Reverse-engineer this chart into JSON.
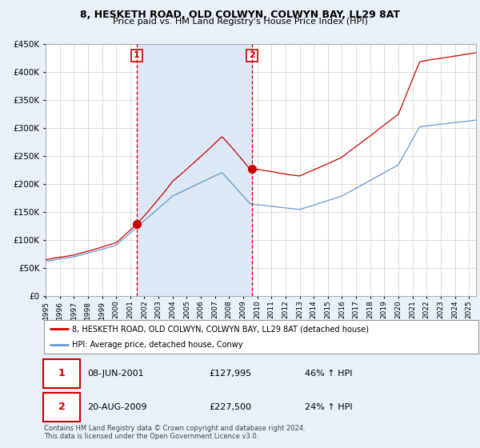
{
  "title": "8, HESKETH ROAD, OLD COLWYN, COLWYN BAY, LL29 8AT",
  "subtitle": "Price paid vs. HM Land Registry's House Price Index (HPI)",
  "hpi_label": "HPI: Average price, detached house, Conwy",
  "property_label": "8, HESKETH ROAD, OLD COLWYN, COLWYN BAY, LL29 8AT (detached house)",
  "sale1_date": "08-JUN-2001",
  "sale1_price": 127995,
  "sale1_hpi": "46% ↑ HPI",
  "sale2_date": "20-AUG-2009",
  "sale2_price": 227500,
  "sale2_hpi": "24% ↑ HPI",
  "footer": "Contains HM Land Registry data © Crown copyright and database right 2024.\nThis data is licensed under the Open Government Licence v3.0.",
  "ylim": [
    0,
    450000
  ],
  "yticks": [
    0,
    50000,
    100000,
    150000,
    200000,
    250000,
    300000,
    350000,
    400000,
    450000
  ],
  "property_color": "#cc0000",
  "hpi_color": "#6699cc",
  "vline_color": "#cc0000",
  "dot_color": "#cc0000",
  "bg_color": "#e8f0f8",
  "shade_color": "#dce8f5",
  "plot_bg": "#ffffff",
  "grid_color": "#cccccc",
  "legend_border_color": "#999999"
}
